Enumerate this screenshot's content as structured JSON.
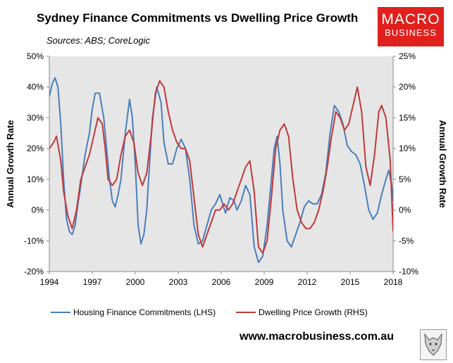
{
  "header": {
    "title": "Sydney Finance Commitments vs Dwelling Price Growth",
    "subtitle": "Sources: ABS; CoreLogic"
  },
  "logo": {
    "line1": "MACRO",
    "line2": "BUSINESS",
    "color": "#e0201c"
  },
  "footer": {
    "website": "www.macrobusiness.com.au",
    "mascot_icon": "wolf-head-icon"
  },
  "chart_data": {
    "type": "line",
    "title": "Sydney Finance Commitments vs Dwelling Price Growth",
    "subtitle": "Sources: ABS; CoreLogic",
    "xlim": [
      1994,
      2018
    ],
    "x_ticks": [
      "1994",
      "1997",
      "2000",
      "2003",
      "2006",
      "2009",
      "2012",
      "2015",
      "2018"
    ],
    "y_left": {
      "label": "Annual Growth Rate",
      "lim": [
        -20,
        50
      ],
      "ticks": [
        "-20%",
        "-10%",
        "0%",
        "10%",
        "20%",
        "30%",
        "40%",
        "50%"
      ]
    },
    "y_right": {
      "label": "Annual Growth Rate",
      "lim": [
        -10,
        25
      ],
      "ticks": [
        "-10%",
        "-5%",
        "0%",
        "5%",
        "10%",
        "15%",
        "20%",
        "25%"
      ]
    },
    "grid": false,
    "legend": "bottom",
    "series": [
      {
        "name": "Housing Finance Commitments (LHS)",
        "axis": "left",
        "color": "#4a7ebb",
        "x": [
          1994.0,
          1994.2,
          1994.4,
          1994.6,
          1994.8,
          1995.0,
          1995.2,
          1995.4,
          1995.6,
          1995.8,
          1996.0,
          1996.2,
          1996.5,
          1996.8,
          1997.0,
          1997.2,
          1997.5,
          1997.8,
          1998.0,
          1998.2,
          1998.4,
          1998.6,
          1998.8,
          1999.0,
          1999.3,
          1999.6,
          1999.8,
          2000.0,
          2000.2,
          2000.4,
          2000.6,
          2000.8,
          2001.0,
          2001.2,
          2001.5,
          2001.8,
          2002.0,
          2002.3,
          2002.6,
          2002.9,
          2003.2,
          2003.5,
          2003.8,
          2004.1,
          2004.4,
          2004.7,
          2005.0,
          2005.3,
          2005.6,
          2005.9,
          2006.1,
          2006.3,
          2006.6,
          2006.9,
          2007.1,
          2007.4,
          2007.7,
          2008.0,
          2008.3,
          2008.6,
          2008.9,
          2009.2,
          2009.5,
          2009.7,
          2009.9,
          2010.1,
          2010.3,
          2010.6,
          2010.9,
          2011.2,
          2011.5,
          2011.8,
          2012.1,
          2012.4,
          2012.7,
          2013.0,
          2013.3,
          2013.6,
          2013.9,
          2014.2,
          2014.5,
          2014.8,
          2015.1,
          2015.4,
          2015.7,
          2016.0,
          2016.3,
          2016.6,
          2016.9,
          2017.2,
          2017.5,
          2017.7,
          2017.9,
          2018.0
        ],
        "values": [
          37,
          41,
          43,
          40,
          28,
          10,
          -3,
          -7,
          -8,
          -5,
          2,
          8,
          18,
          25,
          33,
          38,
          38,
          30,
          20,
          10,
          3,
          1,
          5,
          10,
          25,
          36,
          30,
          15,
          -5,
          -11,
          -8,
          0,
          15,
          30,
          40,
          35,
          22,
          15,
          15,
          20,
          23,
          20,
          10,
          -5,
          -11,
          -10,
          -5,
          0,
          2,
          5,
          2,
          -1,
          4,
          3,
          0,
          3,
          8,
          5,
          -12,
          -17,
          -15,
          -5,
          10,
          20,
          24,
          15,
          0,
          -10,
          -12,
          -8,
          -4,
          1,
          3,
          2,
          2,
          5,
          12,
          25,
          34,
          32,
          28,
          21,
          19,
          18,
          15,
          8,
          0,
          -3,
          -1,
          5,
          10,
          13,
          8,
          3
        ],
        "start_x": 1994.0,
        "end_x": 2018.0
      },
      {
        "name": "Dwelling Price Growth (RHS)",
        "axis": "right",
        "color": "#c0393b",
        "x": [
          1994.0,
          1994.3,
          1994.5,
          1994.8,
          1995.0,
          1995.3,
          1995.6,
          1995.9,
          1996.2,
          1996.5,
          1996.8,
          1997.1,
          1997.4,
          1997.7,
          1997.9,
          1998.1,
          1998.4,
          1998.7,
          1999.0,
          1999.3,
          1999.6,
          1999.9,
          2000.2,
          2000.5,
          2000.8,
          2001.1,
          2001.4,
          2001.7,
          2002.0,
          2002.3,
          2002.6,
          2002.9,
          2003.2,
          2003.5,
          2003.8,
          2004.1,
          2004.4,
          2004.7,
          2005.0,
          2005.3,
          2005.6,
          2005.9,
          2006.2,
          2006.5,
          2006.8,
          2007.1,
          2007.4,
          2007.7,
          2008.0,
          2008.3,
          2008.6,
          2008.9,
          2009.2,
          2009.5,
          2009.8,
          2010.1,
          2010.4,
          2010.7,
          2011.0,
          2011.3,
          2011.6,
          2011.9,
          2012.2,
          2012.5,
          2012.8,
          2013.1,
          2013.4,
          2013.7,
          2014.0,
          2014.3,
          2014.6,
          2014.9,
          2015.2,
          2015.5,
          2015.8,
          2016.1,
          2016.4,
          2016.7,
          2017.0,
          2017.2,
          2017.5,
          2017.8,
          2018.0
        ],
        "values": [
          10,
          11,
          12,
          8,
          3,
          -1,
          -3,
          0,
          5,
          7,
          9,
          12,
          15,
          14,
          10,
          5,
          4,
          5,
          9,
          12,
          13,
          11,
          6,
          4,
          6,
          12,
          19,
          21,
          20,
          16,
          13,
          11,
          10,
          10,
          8,
          2,
          -4,
          -6,
          -4,
          -2,
          0,
          0,
          1,
          0,
          1,
          3,
          5,
          7,
          8,
          3,
          -6,
          -7,
          -5,
          2,
          10,
          13,
          14,
          12,
          5,
          0,
          -2,
          -3,
          -3,
          -2,
          0,
          3,
          7,
          12,
          16,
          15,
          13,
          14,
          17,
          20,
          16,
          7,
          4,
          9,
          16,
          17,
          15,
          8,
          -3.5
        ]
      }
    ]
  }
}
